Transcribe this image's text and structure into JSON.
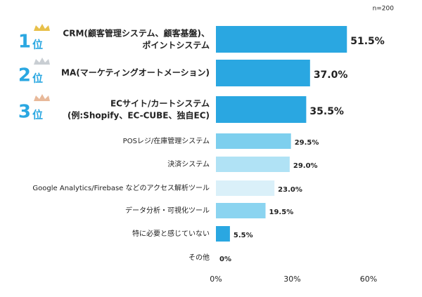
{
  "chart_data": {
    "type": "bar",
    "orientation": "horizontal",
    "note": "n=200",
    "categories": [
      "CRM(顧客管理システム、顧客基盤)、\nポイントシステム",
      "MA(マーケティングオートメーション)",
      "ECサイト/カートシステム\n(例:Shopify、EC-CUBE、独自EC)",
      "POSレジ/在庫管理システム",
      "決済システム",
      "Google Analytics/Firebase などのアクセス解析ツール",
      "データ分析・可視化ツール",
      "特に必要と感じていない",
      "その他"
    ],
    "values": [
      51.5,
      37.0,
      35.5,
      29.5,
      29.0,
      23.0,
      19.5,
      5.5,
      0
    ],
    "value_labels": [
      "51.5%",
      "37.0%",
      "35.5%",
      "29.5%",
      "29.0%",
      "23.0%",
      "19.5%",
      "5.5%",
      "0%"
    ],
    "colors": [
      "#2aa7e1",
      "#2aa7e1",
      "#2aa7e1",
      "#7dcfee",
      "#b0e2f5",
      "#daf0f9",
      "#8bd4f0",
      "#2aa7e1",
      "#2aa7e1"
    ],
    "ranks": [
      {
        "number": "1",
        "unit": "位"
      },
      {
        "number": "2",
        "unit": "位"
      },
      {
        "number": "3",
        "unit": "位"
      }
    ],
    "xlim": [
      0,
      60
    ],
    "xticks": [
      {
        "value": 0,
        "label": "0%"
      },
      {
        "value": 30,
        "label": "30%"
      },
      {
        "value": 60,
        "label": "60%"
      }
    ],
    "grid": false
  }
}
